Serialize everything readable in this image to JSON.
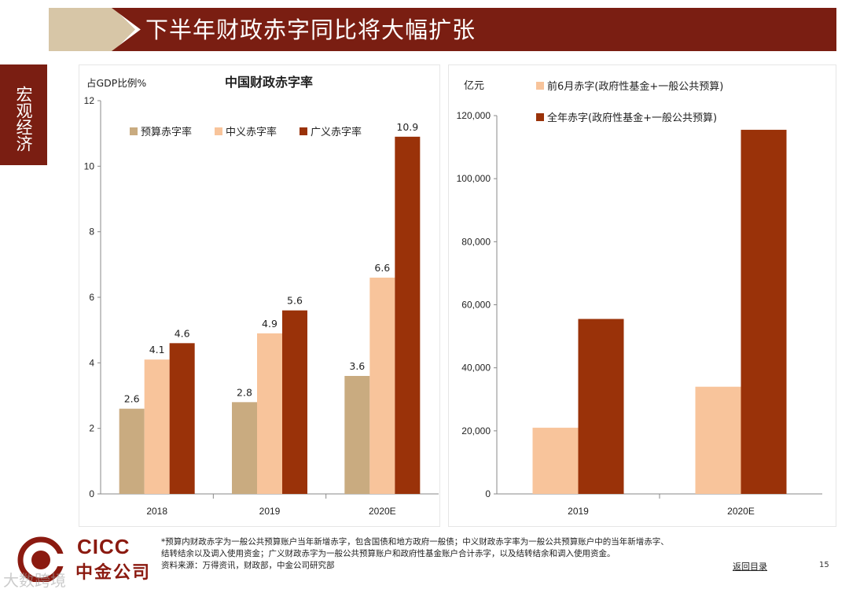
{
  "header": {
    "title": "下半年财政赤字同比将大幅扩张"
  },
  "side_tab": {
    "label": "宏观经济"
  },
  "colors": {
    "brand": "#7a1e12",
    "tan": "#c9ab80",
    "peach": "#f8c49b",
    "rust": "#9a3209"
  },
  "chart_data": [
    {
      "type": "bar",
      "title": "中国财政赤字率",
      "ylabel": "占GDP比例%",
      "ylim": [
        0,
        12
      ],
      "yticks": [
        "0",
        "2",
        "4",
        "6",
        "8",
        "10",
        "12"
      ],
      "categories": [
        "2018",
        "2019",
        "2020E"
      ],
      "legend_position": "top-left",
      "series": [
        {
          "name": "预算赤字率",
          "values": [
            2.6,
            2.8,
            3.6
          ],
          "labels": [
            "2.6",
            "2.8",
            "3.6"
          ],
          "color": "#c9ab80"
        },
        {
          "name": "中义赤字率",
          "values": [
            4.1,
            4.9,
            6.6
          ],
          "labels": [
            "4.1",
            "4.9",
            "6.6"
          ],
          "color": "#f8c49b"
        },
        {
          "name": "广义赤字率",
          "values": [
            4.6,
            5.6,
            10.9
          ],
          "labels": [
            "4.6",
            "5.6",
            "10.9"
          ],
          "color": "#9a3209"
        }
      ]
    },
    {
      "type": "bar",
      "title": "",
      "ylabel": "亿元",
      "ylim": [
        0,
        120000
      ],
      "yticks": [
        "0",
        "20,000",
        "40,000",
        "60,000",
        "80,000",
        "100,000",
        "120,000"
      ],
      "categories": [
        "2019",
        "2020E"
      ],
      "legend_position": "top",
      "series": [
        {
          "name": "前6月赤字(政府性基金+一般公共预算)",
          "values": [
            21000,
            34000
          ],
          "color": "#f8c49b"
        },
        {
          "name": "全年赤字(政府性基金+一般公共预算)",
          "values": [
            55500,
            115500
          ],
          "color": "#9a3209"
        }
      ]
    }
  ],
  "footnote": {
    "line1": "*预算内财政赤字为一般公共预算账户当年新增赤字，包含国债和地方政府一般债；中义财政赤字率为一般公共预算账户中的当年新增赤字、",
    "line2": "结转结余以及调入使用资金；广义财政赤字为一般公共预算账户和政府性基金账户合计赤字，以及结转结余和调入使用资金。",
    "line3": "资料来源：万得资讯，财政部，中金公司研究部"
  },
  "footer": {
    "back_link": "返回目录",
    "page_number": "15"
  },
  "logo": {
    "en": "CICC",
    "cn": "中金公司"
  },
  "watermark": "大数跨境"
}
